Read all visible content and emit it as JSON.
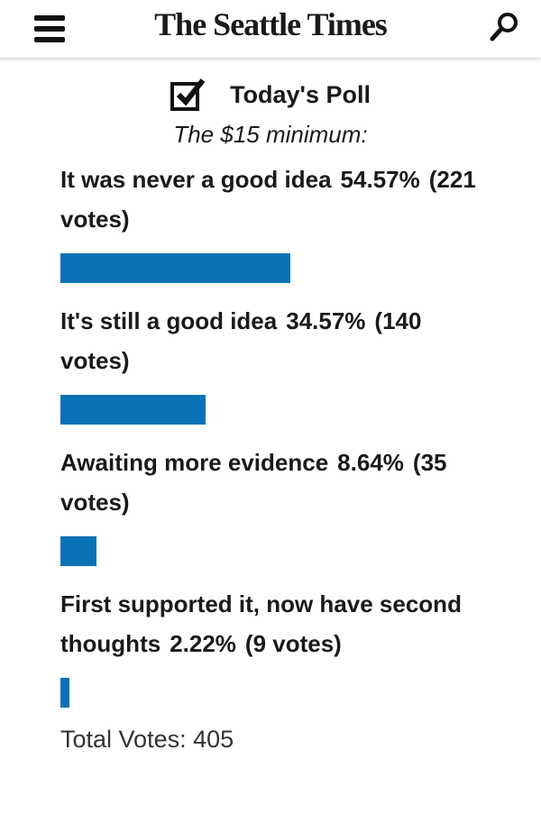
{
  "header": {
    "logo": "The Seattle Times"
  },
  "poll": {
    "title": "Today's Poll",
    "question": "The $15 minimum:",
    "options": [
      {
        "label": "It was never a good idea",
        "value": 54.57,
        "value_label": "54.57%",
        "votes_label": "(221 votes)"
      },
      {
        "label": "It's still a good idea",
        "value": 34.57,
        "value_label": "34.57%",
        "votes_label": "(140 votes)"
      },
      {
        "label": "Awaiting more evidence",
        "value": 8.64,
        "value_label": "8.64%",
        "votes_label": "(35 votes)"
      },
      {
        "label": "First supported it, now have second thoughts",
        "value": 2.22,
        "value_label": "2.22%",
        "votes_label": "(9 votes)"
      }
    ],
    "bar_color": "#0b72b5",
    "total_label": "Total Votes: 405"
  }
}
